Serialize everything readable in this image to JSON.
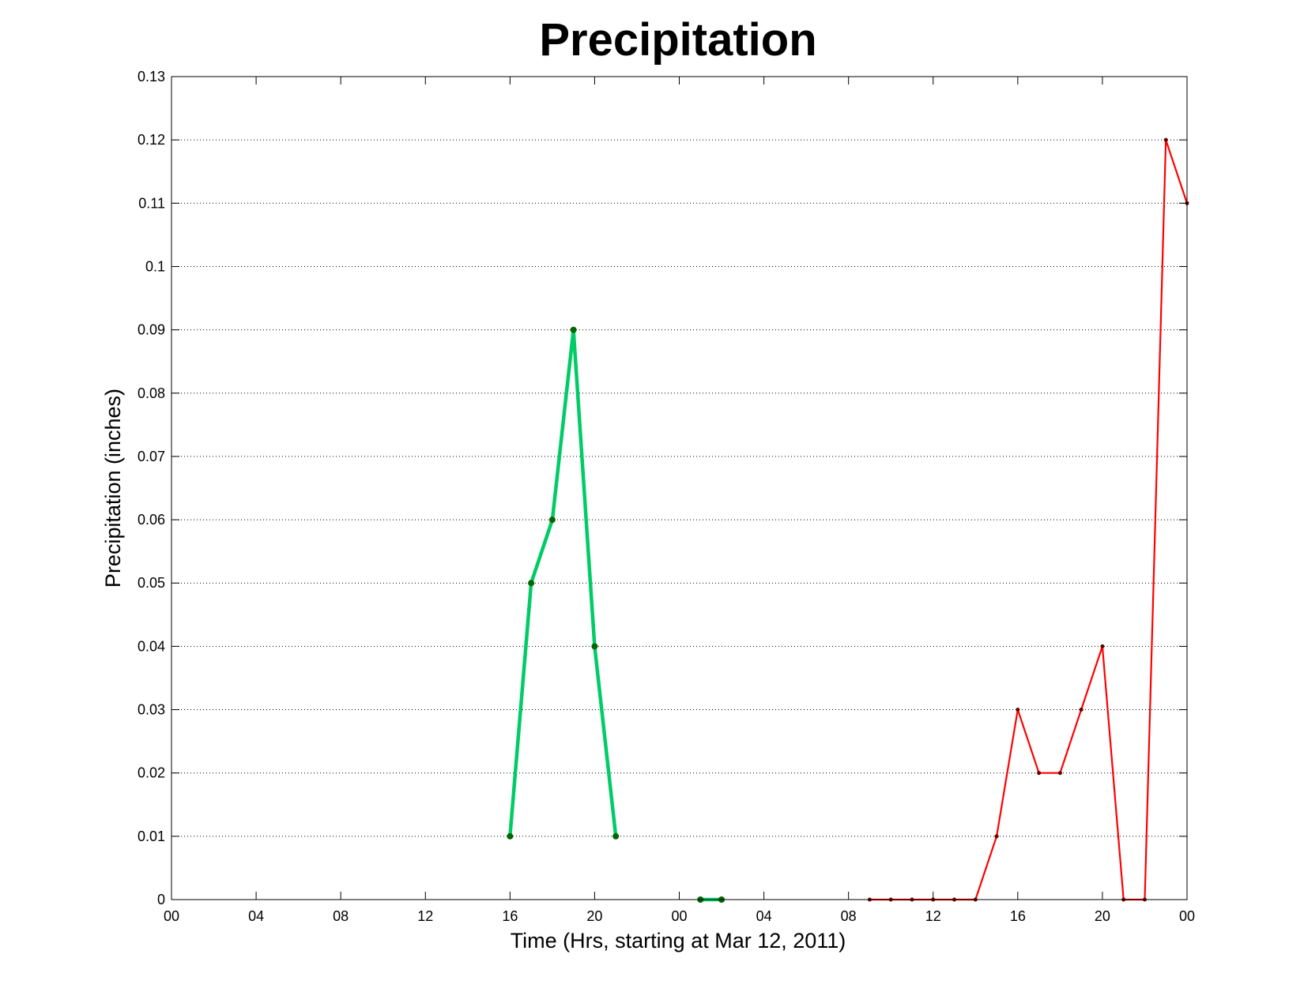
{
  "chart_data": {
    "type": "line",
    "title": "Precipitation",
    "xlabel": "Time (Hrs, starting at Mar 12, 2011)",
    "ylabel": "Precipitation (inches)",
    "x_unit": "hours",
    "xlim": [
      0,
      48
    ],
    "ylim": [
      0,
      0.13
    ],
    "x_ticks": [
      0,
      4,
      8,
      12,
      16,
      20,
      24,
      28,
      32,
      36,
      40,
      44,
      48
    ],
    "x_tick_labels": [
      "00",
      "04",
      "08",
      "12",
      "16",
      "20",
      "00",
      "04",
      "08",
      "12",
      "16",
      "20",
      "00"
    ],
    "y_ticks": [
      0,
      0.01,
      0.02,
      0.03,
      0.04,
      0.05,
      0.06,
      0.07,
      0.08,
      0.09,
      0.1,
      0.11,
      0.12,
      0.13
    ],
    "y_tick_labels": [
      "0",
      "0.01",
      "0.02",
      "0.03",
      "0.04",
      "0.05",
      "0.06",
      "0.07",
      "0.08",
      "0.09",
      "0.1",
      "0.11",
      "0.12",
      "0.13"
    ],
    "grid": "y-dotted",
    "series": [
      {
        "color": "#00cc66",
        "marker_color": "#006600",
        "line_style": "thick",
        "segments": [
          {
            "x": [
              16,
              17,
              18,
              19,
              20,
              21
            ],
            "y": [
              0.01,
              0.05,
              0.06,
              0.09,
              0.04,
              0.01
            ]
          },
          {
            "x": [
              25,
              26
            ],
            "y": [
              0,
              0
            ]
          }
        ]
      },
      {
        "color": "#ff0000",
        "marker_color": "#660000",
        "line_style": "thin",
        "segments": [
          {
            "x": [
              33,
              34,
              35,
              36,
              37,
              38,
              39,
              40,
              41,
              42,
              43,
              44,
              45,
              46,
              47,
              48
            ],
            "y": [
              0,
              0,
              0,
              0,
              0,
              0,
              0.01,
              0.03,
              0.02,
              0.02,
              0.03,
              0.04,
              0,
              0,
              0.12,
              0.11
            ]
          }
        ]
      }
    ]
  }
}
